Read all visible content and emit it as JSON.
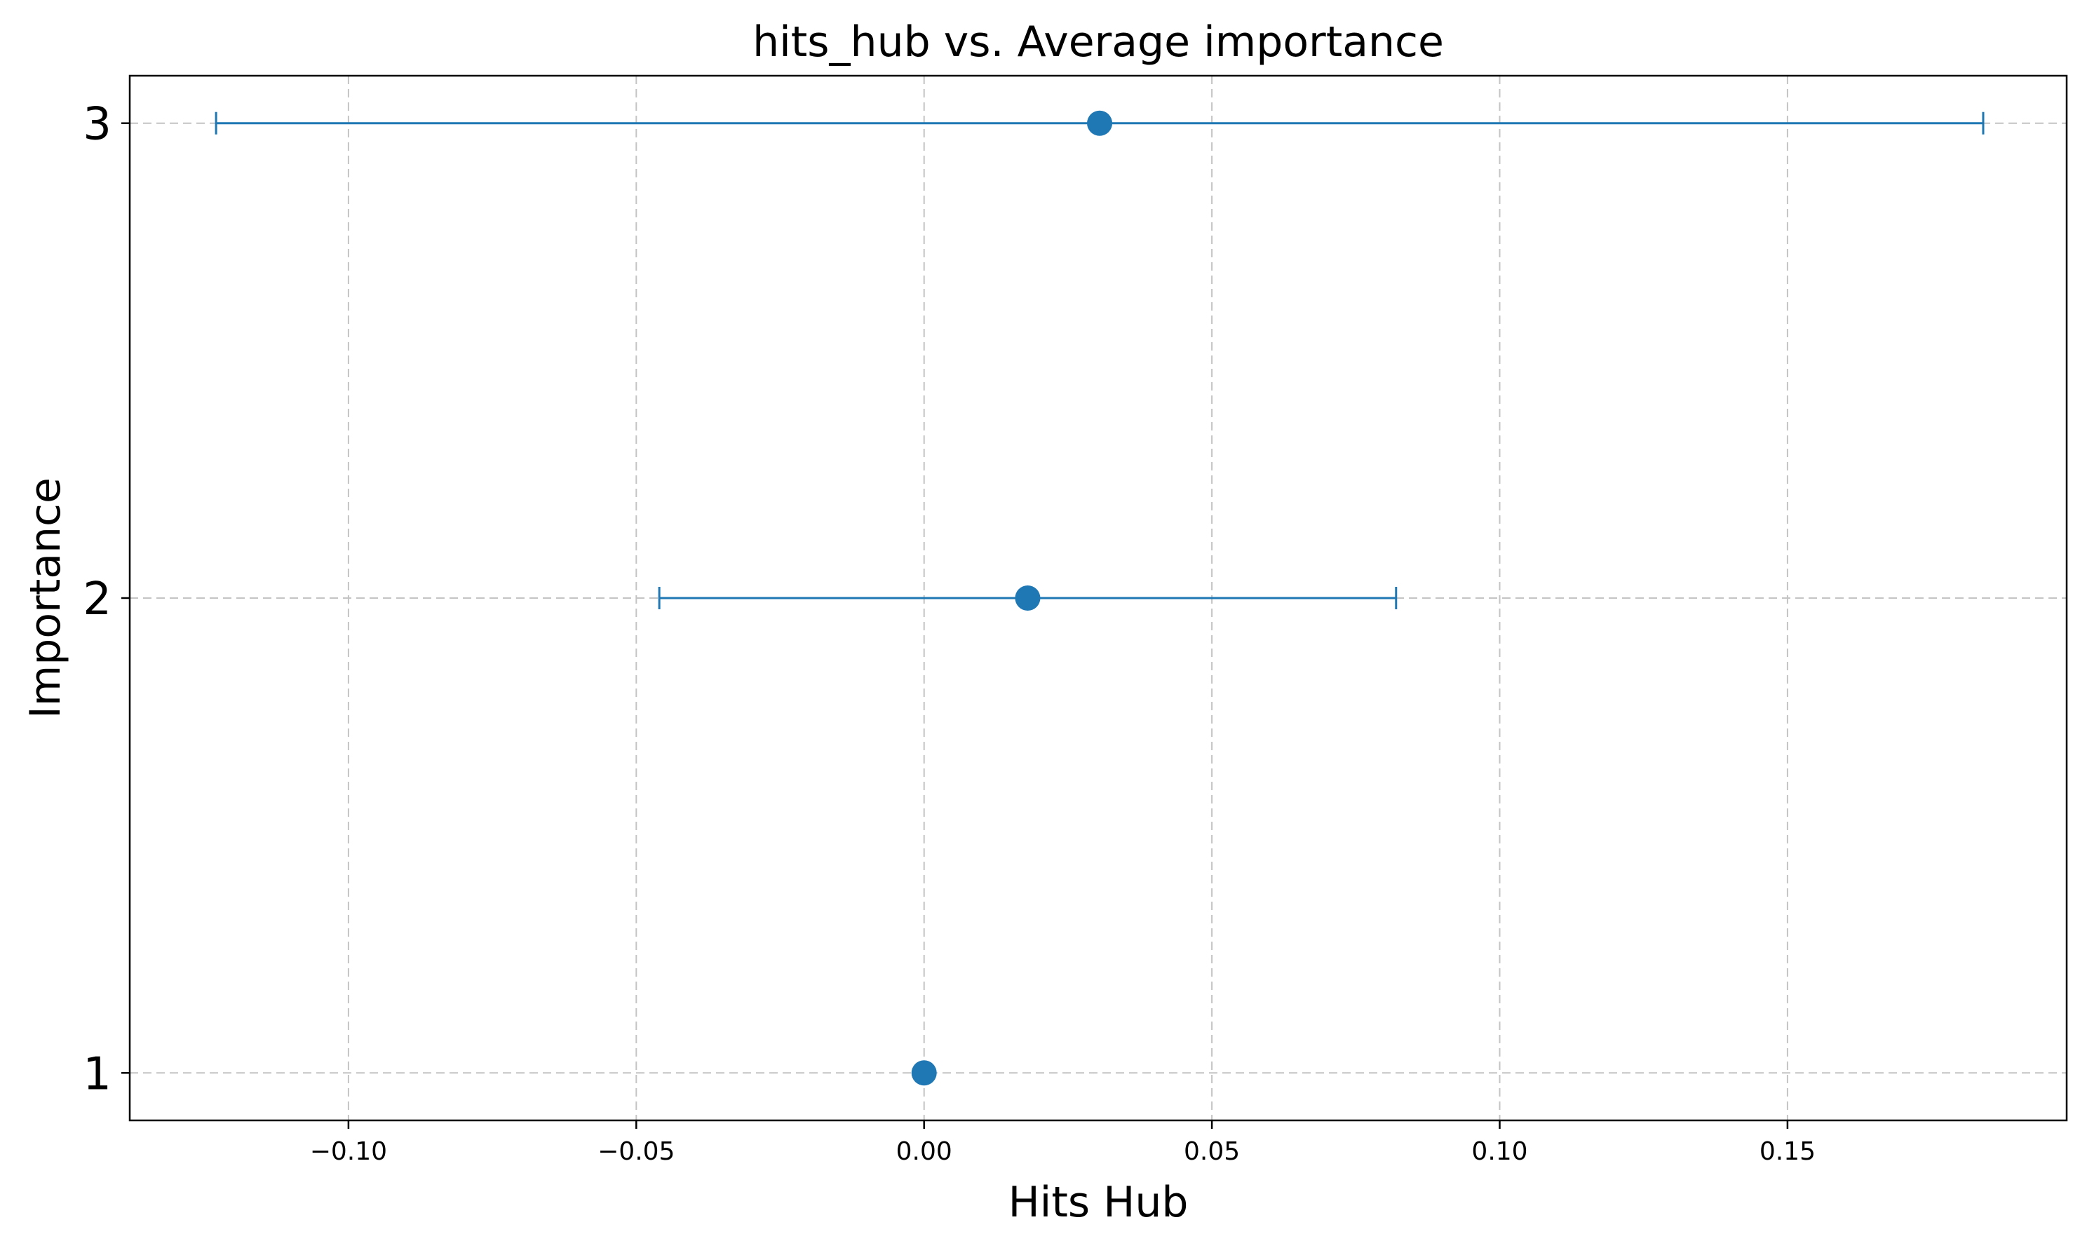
{
  "chart_data": {
    "type": "scatter",
    "title": "hits_hub vs. Average importance",
    "xlabel": "Hits Hub",
    "ylabel": "Importance",
    "xlim": [
      -0.138,
      0.1985
    ],
    "ylim": [
      0.9,
      3.1
    ],
    "xticks": [
      -0.1,
      -0.05,
      0.0,
      0.05,
      0.1,
      0.15
    ],
    "xtick_labels": [
      "−0.10",
      "−0.05",
      "0.00",
      "0.05",
      "0.10",
      "0.15"
    ],
    "yticks": [
      1,
      2,
      3
    ],
    "ytick_labels": [
      "1",
      "2",
      "3"
    ],
    "grid": true,
    "series": [
      {
        "color": "#1f77b4",
        "points": [
          {
            "y": 1,
            "x": 0.0,
            "xerr": 0.0
          },
          {
            "y": 2,
            "x": 0.018,
            "xerr": 0.064
          },
          {
            "y": 3,
            "x": 0.0305,
            "xerr": 0.1535
          }
        ]
      }
    ]
  }
}
